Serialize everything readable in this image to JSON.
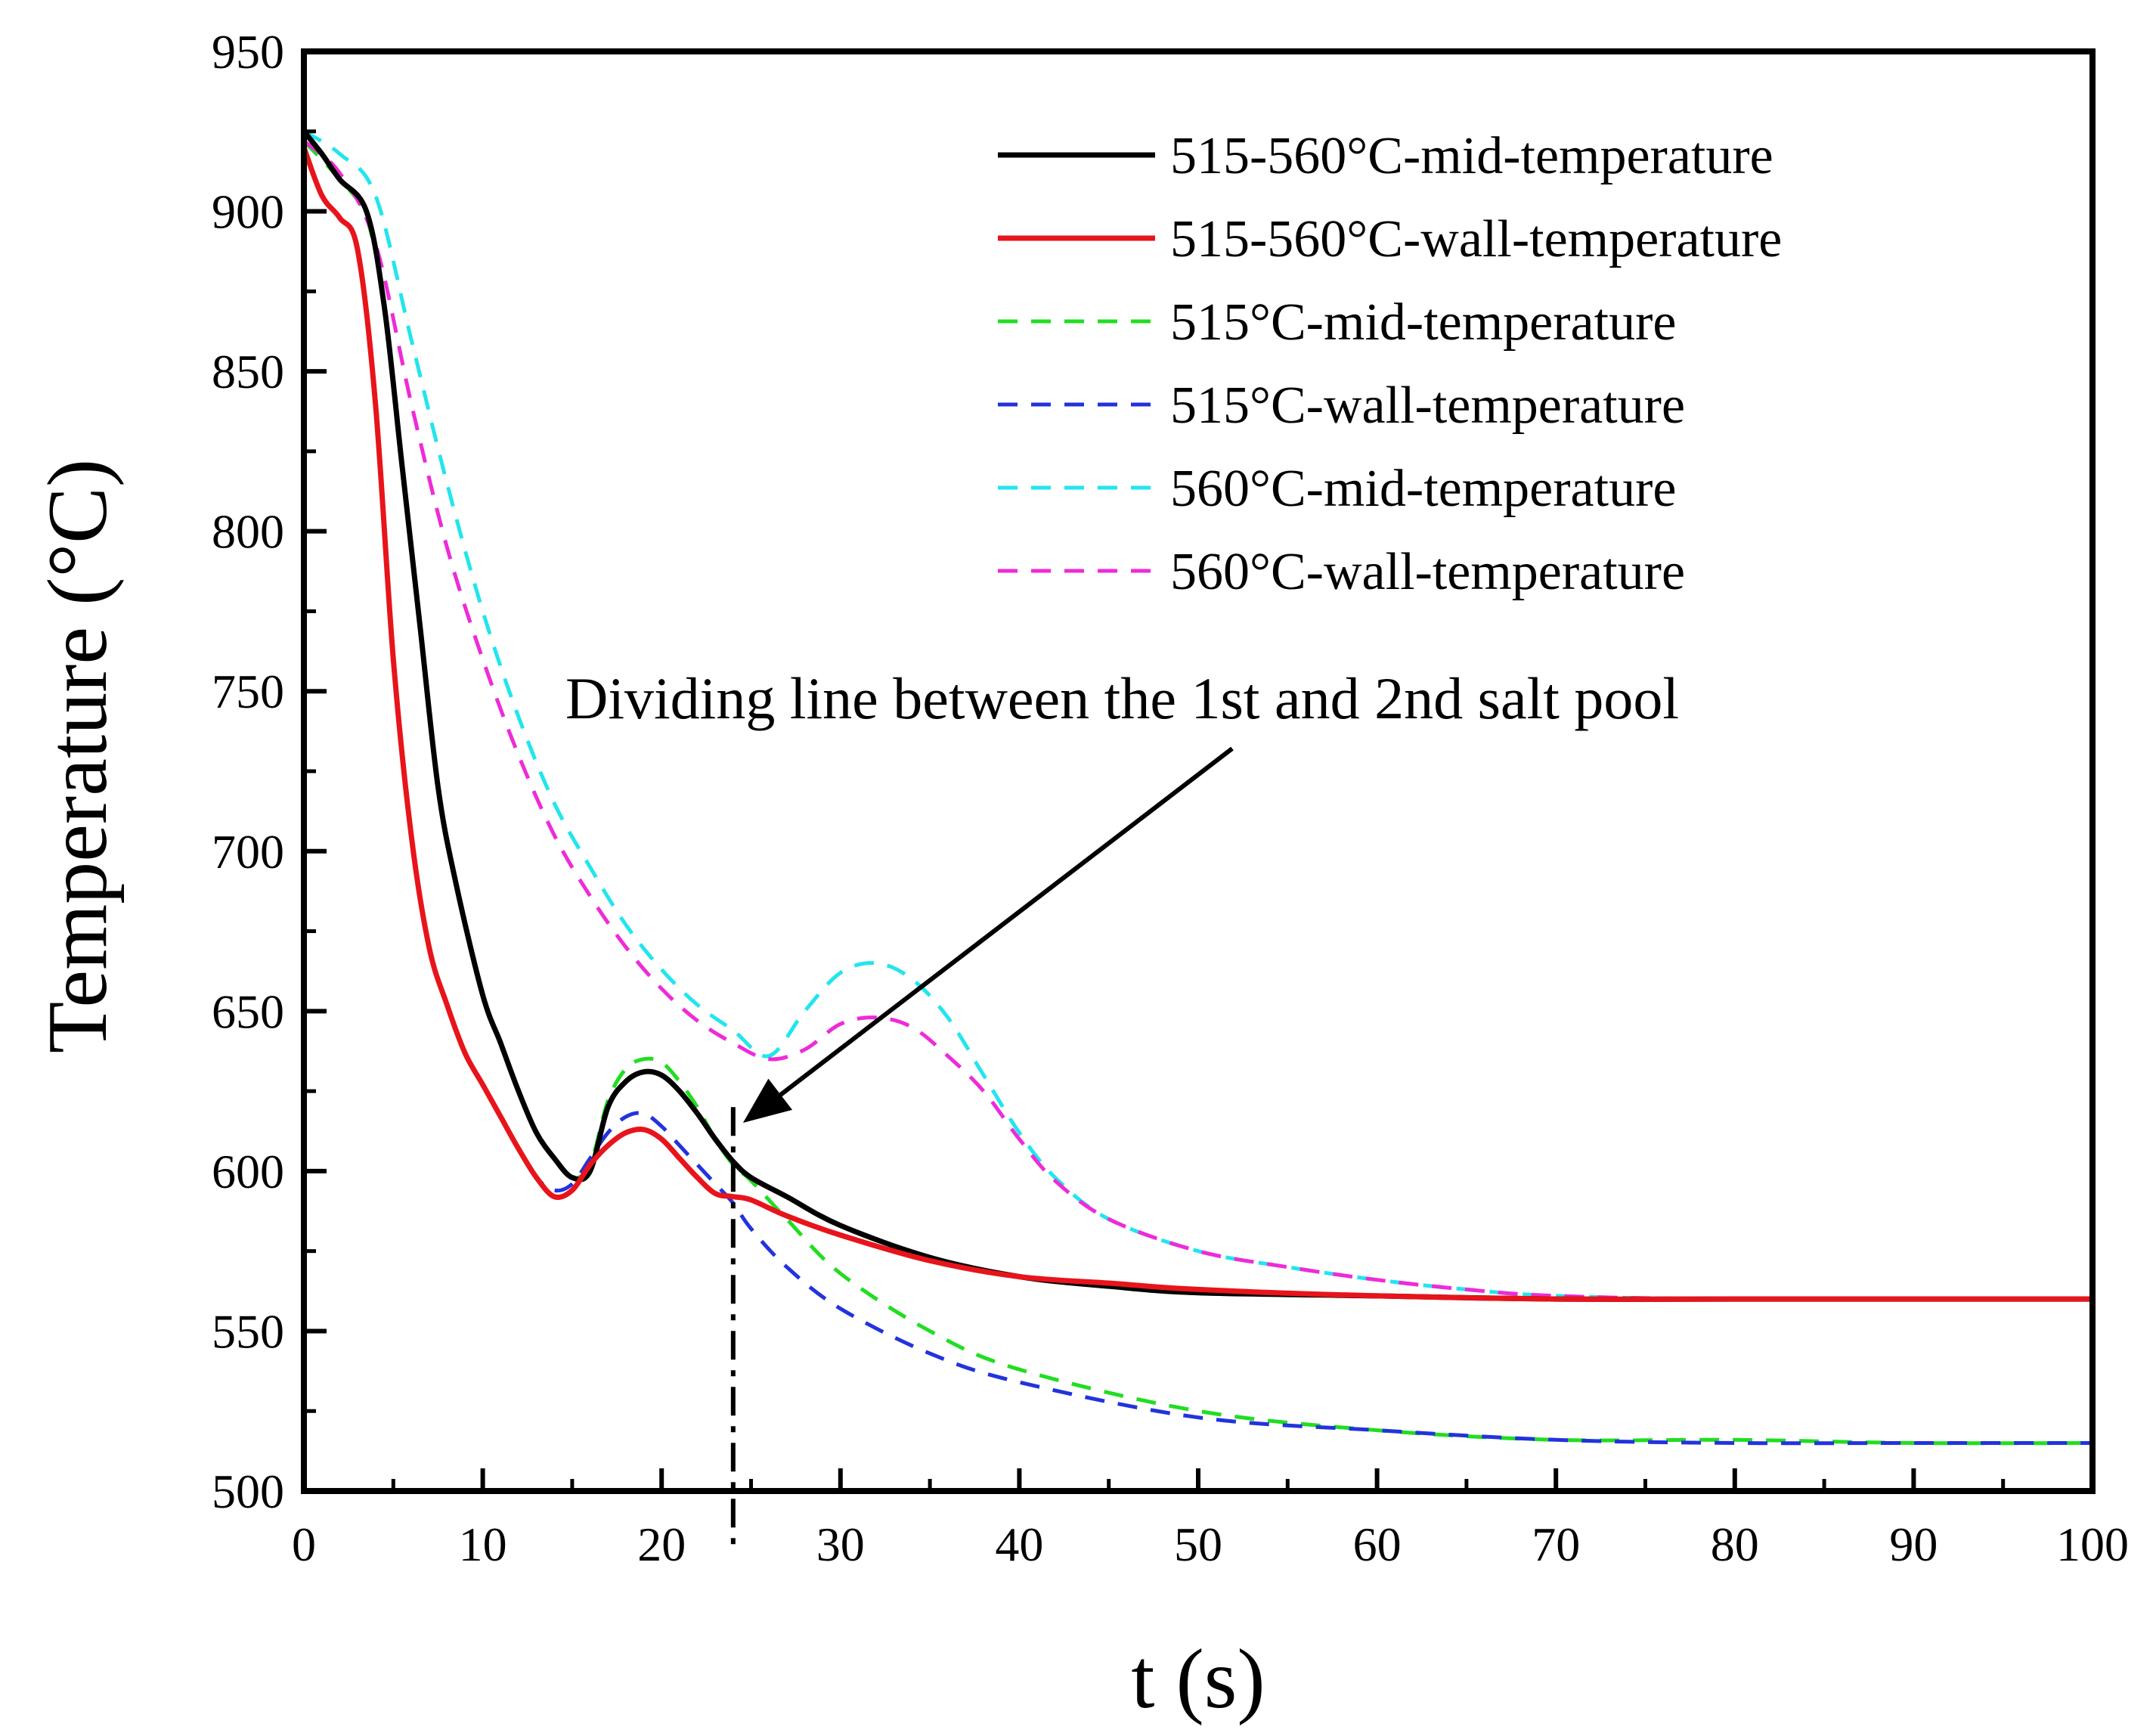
{
  "chart_data": {
    "type": "line",
    "title": "",
    "xlabel": "t (s)",
    "ylabel": "Temperature (°C)",
    "xlim": [
      0,
      100
    ],
    "ylim": [
      500,
      950
    ],
    "xticks": [
      0,
      10,
      20,
      30,
      40,
      50,
      60,
      70,
      80,
      90,
      100
    ],
    "yticks": [
      500,
      550,
      600,
      650,
      700,
      750,
      800,
      850,
      900,
      950
    ],
    "grid": false,
    "legend_position": "top-right",
    "series": [
      {
        "name": "515-560°C-mid-temperature",
        "color": "#000000",
        "dash": "solid",
        "x": [
          0,
          1,
          2,
          3.5,
          4.5,
          5.5,
          6.5,
          7.5,
          8.5,
          10,
          11,
          12,
          13,
          14,
          15,
          16,
          17,
          18,
          19,
          20,
          21,
          22,
          23,
          24,
          25,
          27,
          30,
          35,
          40,
          45,
          50,
          60,
          70,
          80,
          100
        ],
        "y": [
          925,
          918,
          910,
          900,
          870,
          820,
          770,
          720,
          690,
          655,
          640,
          625,
          612,
          604,
          598,
          600,
          620,
          628,
          631,
          630,
          625,
          618,
          610,
          603,
          598,
          592,
          583,
          573,
          567,
          564,
          562,
          561,
          560,
          560,
          560
        ]
      },
      {
        "name": "515-560°C-wall-temperature",
        "color": "#e8141b",
        "dash": "solid",
        "x": [
          0,
          1,
          2,
          3,
          4,
          5,
          6,
          7,
          8,
          9,
          10,
          11,
          12,
          13,
          14,
          15,
          16,
          17,
          18,
          19,
          20,
          21,
          22,
          23,
          24,
          25,
          27,
          30,
          35,
          40,
          45,
          50,
          60,
          70,
          80,
          100
        ],
        "y": [
          920,
          905,
          898,
          888,
          840,
          760,
          705,
          670,
          652,
          637,
          627,
          617,
          607,
          598,
          592,
          594,
          602,
          608,
          612,
          613,
          610,
          604,
          598,
          593,
          592,
          591,
          586,
          580,
          572,
          567,
          565,
          563,
          561,
          560,
          560,
          560
        ]
      },
      {
        "name": "515°C-mid-temperature",
        "color": "#22dd22",
        "dash": "dashed",
        "x": [
          0,
          2,
          3.5,
          4.5,
          5.5,
          6.5,
          7.5,
          8.5,
          10,
          11,
          12,
          13,
          14,
          15,
          16,
          17,
          18,
          19,
          20,
          21,
          22,
          23,
          24,
          25,
          27,
          30,
          35,
          40,
          50,
          60,
          70,
          80,
          90,
          100
        ],
        "y": [
          922,
          910,
          898,
          870,
          820,
          770,
          720,
          690,
          655,
          640,
          625,
          612,
          604,
          598,
          602,
          622,
          632,
          635,
          634,
          628,
          620,
          610,
          602,
          597,
          585,
          568,
          550,
          538,
          525,
          519,
          516,
          516,
          515,
          515
        ]
      },
      {
        "name": "515°C-wall-temperature",
        "color": "#2233dd",
        "dash": "dashed",
        "x": [
          0,
          1,
          2,
          3,
          4,
          5,
          6,
          7,
          8,
          9,
          10,
          11,
          12,
          13,
          14,
          15,
          16,
          17,
          18,
          19,
          20,
          21,
          22,
          23,
          24,
          25,
          27,
          30,
          35,
          40,
          50,
          60,
          70,
          80,
          90,
          100
        ],
        "y": [
          920,
          905,
          898,
          888,
          840,
          760,
          705,
          670,
          652,
          637,
          627,
          617,
          607,
          598,
          594,
          596,
          604,
          612,
          617,
          618,
          614,
          608,
          602,
          596,
          590,
          582,
          570,
          557,
          543,
          534,
          523,
          519,
          516,
          515,
          515,
          515
        ]
      },
      {
        "name": "560°C-mid-temperature",
        "color": "#22e5ee",
        "dash": "dashed",
        "x": [
          0,
          2,
          4,
          6,
          8,
          10,
          12,
          14,
          16,
          18,
          20,
          22,
          24,
          26,
          28,
          30,
          32,
          34,
          36,
          38,
          40,
          42,
          45,
          50,
          55,
          60,
          65,
          70,
          80,
          100
        ],
        "y": [
          925,
          918,
          905,
          860,
          815,
          775,
          742,
          715,
          695,
          677,
          663,
          652,
          644,
          636,
          650,
          662,
          665,
          660,
          648,
          630,
          612,
          598,
          585,
          575,
          570,
          566,
          563,
          561,
          560,
          560
        ]
      },
      {
        "name": "560°C-wall-temperature",
        "color": "#ee2bd8",
        "dash": "dashed",
        "x": [
          0,
          2,
          4,
          6,
          8,
          10,
          12,
          14,
          16,
          18,
          20,
          22,
          24,
          26,
          28,
          30,
          32,
          34,
          36,
          38,
          40,
          42,
          45,
          50,
          55,
          60,
          65,
          70,
          80,
          100
        ],
        "y": [
          922,
          912,
          890,
          840,
          795,
          760,
          730,
          705,
          686,
          670,
          657,
          647,
          640,
          635,
          638,
          646,
          648,
          645,
          636,
          625,
          610,
          597,
          585,
          575,
          570,
          566,
          563,
          561,
          560,
          560
        ]
      }
    ],
    "annotations": [
      {
        "text": "Dividing line between the 1st and 2nd salt pool",
        "x": 24,
        "y": 600,
        "arrow_to_x": 24.3,
        "arrow_to_y": 617
      }
    ],
    "vertical_line": {
      "x": 24,
      "style": "dash-dot"
    }
  }
}
